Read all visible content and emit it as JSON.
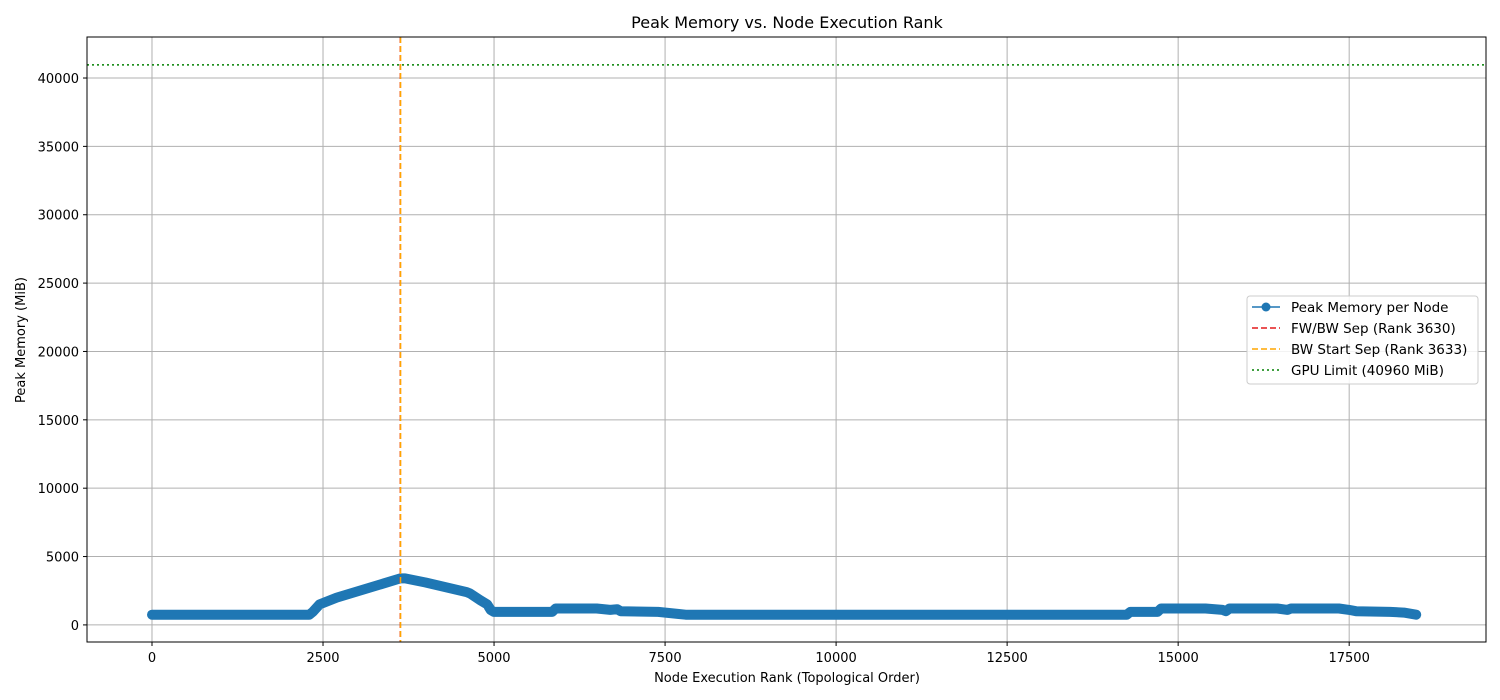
{
  "chart_data": {
    "type": "line",
    "title": "Peak Memory vs. Node Execution Rank",
    "xlabel": "Node Execution Rank (Topological Order)",
    "ylabel": "Peak Memory (MiB)",
    "xlim": [
      -950,
      19500
    ],
    "ylim": [
      -1250,
      43000
    ],
    "xticks": [
      0,
      2500,
      5000,
      7500,
      10000,
      12500,
      15000,
      17500
    ],
    "xtick_labels": [
      "0",
      "2500",
      "5000",
      "7500",
      "10000",
      "12500",
      "15000",
      "17500"
    ],
    "yticks": [
      0,
      5000,
      10000,
      15000,
      20000,
      25000,
      30000,
      35000,
      40000
    ],
    "ytick_labels": [
      "0",
      "5000",
      "10000",
      "15000",
      "20000",
      "25000",
      "30000",
      "35000",
      "40000"
    ],
    "grid": true,
    "legend_position": "center-right",
    "series": [
      {
        "name": "Peak Memory per Node",
        "style": "line-marker",
        "color": "#1f77b4",
        "x": [
          0,
          2300,
          2350,
          2450,
          2700,
          3630,
          3700,
          4000,
          4600,
          4650,
          4800,
          4900,
          4950,
          5000,
          5850,
          5900,
          6500,
          6700,
          6800,
          6850,
          7400,
          7700,
          7800,
          8000,
          14250,
          14300,
          14700,
          14750,
          15400,
          15650,
          15700,
          15750,
          16450,
          16600,
          16650,
          17350,
          17500,
          17600,
          18100,
          18300,
          18480
        ],
        "y": [
          750,
          750,
          950,
          1500,
          2000,
          3400,
          3400,
          3100,
          2400,
          2300,
          1800,
          1500,
          1100,
          950,
          950,
          1200,
          1200,
          1100,
          1150,
          1000,
          950,
          800,
          750,
          750,
          750,
          950,
          950,
          1200,
          1200,
          1100,
          1000,
          1200,
          1200,
          1100,
          1200,
          1200,
          1100,
          1000,
          950,
          900,
          750
        ]
      },
      {
        "name": "FW/BW Sep (Rank 3630)",
        "style": "vline-dashed",
        "color": "#e31a1c",
        "x": 3630
      },
      {
        "name": "BW Start Sep (Rank 3633)",
        "style": "vline-dashed",
        "color": "#ffa500",
        "x": 3633
      },
      {
        "name": "GPU Limit (40960 MiB)",
        "style": "hline-dotted",
        "color": "#008000",
        "y": 40960
      }
    ]
  }
}
